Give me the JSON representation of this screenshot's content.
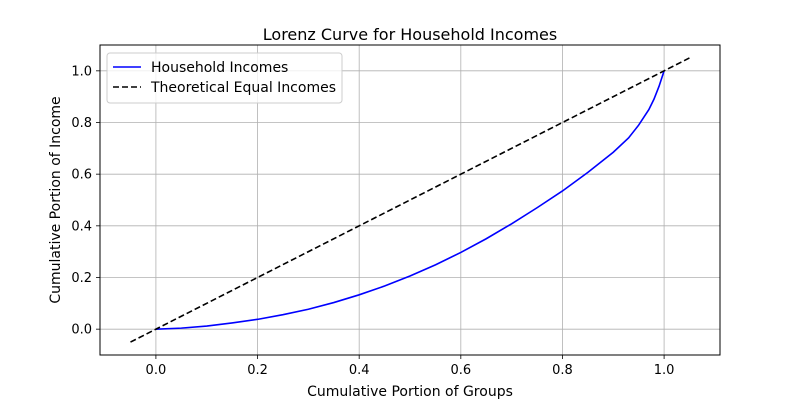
{
  "chart_data": {
    "type": "line",
    "title": "Lorenz Curve for Household Incomes",
    "xlabel": "Cumulative Portion of Groups",
    "ylabel": "Cumulative Portion of Income",
    "xlim": [
      -0.11,
      1.11
    ],
    "ylim": [
      -0.1,
      1.1
    ],
    "xticks": [
      0.0,
      0.2,
      0.4,
      0.6,
      0.8,
      1.0
    ],
    "xtick_labels": [
      "0.0",
      "0.2",
      "0.4",
      "0.6",
      "0.8",
      "1.0"
    ],
    "yticks": [
      0.0,
      0.2,
      0.4,
      0.6,
      0.8,
      1.0
    ],
    "ytick_labels": [
      "0.0",
      "0.2",
      "0.4",
      "0.6",
      "0.8",
      "1.0"
    ],
    "grid": true,
    "legend_position": "upper-left",
    "series": [
      {
        "name": "Household Incomes",
        "color": "#0000ff",
        "style": "solid",
        "x": [
          0.0,
          0.05,
          0.1,
          0.15,
          0.2,
          0.25,
          0.3,
          0.35,
          0.4,
          0.45,
          0.5,
          0.55,
          0.6,
          0.65,
          0.7,
          0.75,
          0.8,
          0.85,
          0.9,
          0.93,
          0.95,
          0.97,
          0.98,
          0.99,
          1.0
        ],
        "y": [
          0.0,
          0.004,
          0.012,
          0.024,
          0.038,
          0.056,
          0.077,
          0.103,
          0.133,
          0.167,
          0.206,
          0.249,
          0.297,
          0.35,
          0.408,
          0.47,
          0.535,
          0.607,
          0.685,
          0.74,
          0.79,
          0.85,
          0.89,
          0.94,
          1.0
        ]
      },
      {
        "name": "Theoretical Equal Incomes",
        "color": "#000000",
        "style": "dashed",
        "x": [
          -0.05,
          1.05
        ],
        "y": [
          -0.05,
          1.05
        ]
      }
    ]
  }
}
